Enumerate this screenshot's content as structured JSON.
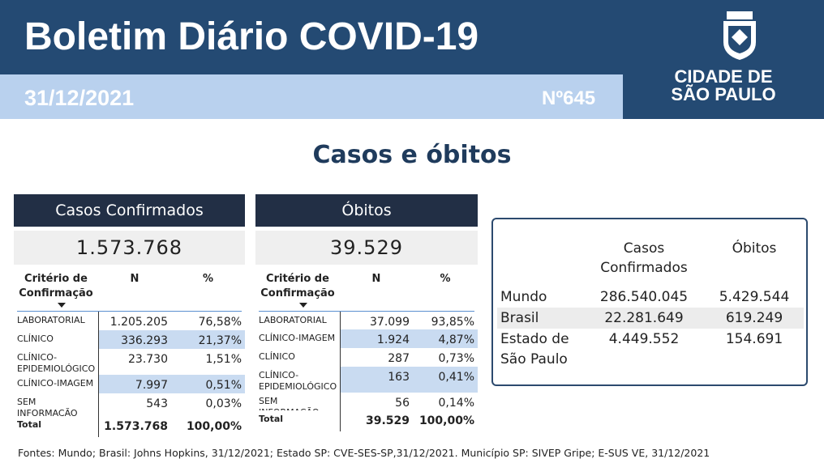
{
  "header": {
    "title": "Boletim Diário COVID-19",
    "date": "31/12/2021",
    "number": "Nº645",
    "city": [
      "CIDADE DE",
      "SÃO PAULO"
    ]
  },
  "section_title": "Casos e óbitos",
  "cases": {
    "title": "Casos Confirmados",
    "total": "1.573.768",
    "columns": [
      "Critério de Confirmação",
      "N",
      "%"
    ],
    "rows": [
      [
        "LABORATORIAL",
        "1.205.205",
        "76,58%"
      ],
      [
        "CLÍNICO",
        "336.293",
        "21,37%"
      ],
      [
        "CLÍNICO-EPIDEMIOLÓGICO",
        "23.730",
        "1,51%"
      ],
      [
        "CLÍNICO-IMAGEM",
        "7.997",
        "0,51%"
      ],
      [
        "SEM INFORMAÇÃO",
        "543",
        "0,03%"
      ]
    ],
    "total_row": [
      "Total",
      "1.573.768",
      "100,00%"
    ]
  },
  "deaths": {
    "title": "Óbitos",
    "total": "39.529",
    "columns": [
      "Critério de Confirmação",
      "N",
      "%"
    ],
    "rows": [
      [
        "LABORATORIAL",
        "37.099",
        "93,85%"
      ],
      [
        "CLÍNICO-IMAGEM",
        "1.924",
        "4,87%"
      ],
      [
        "CLÍNICO",
        "287",
        "0,73%"
      ],
      [
        "CLÍNICO-EPIDEMIOLÓGICO",
        "163",
        "0,41%"
      ],
      [
        "SEM INFORMAÇÃO",
        "56",
        "0,14%"
      ]
    ],
    "total_row": [
      "Total",
      "39.529",
      "100,00%"
    ]
  },
  "world": {
    "columns": [
      "Casos Confirmados",
      "Óbitos"
    ],
    "rows": [
      [
        "Mundo",
        "286.540.045",
        "5.429.544"
      ],
      [
        "Brasil",
        "22.281.649",
        "619.249"
      ],
      [
        "Estado de São Paulo",
        "4.449.552",
        "154.691"
      ]
    ]
  },
  "footer": "Fontes: Mundo; Brasil: Johns Hopkins, 31/12/2021; Estado SP: CVE-SES-SP,31/12/2021. Município SP: SIVEP Gripe; E-SUS VE, 31/12/2021"
}
